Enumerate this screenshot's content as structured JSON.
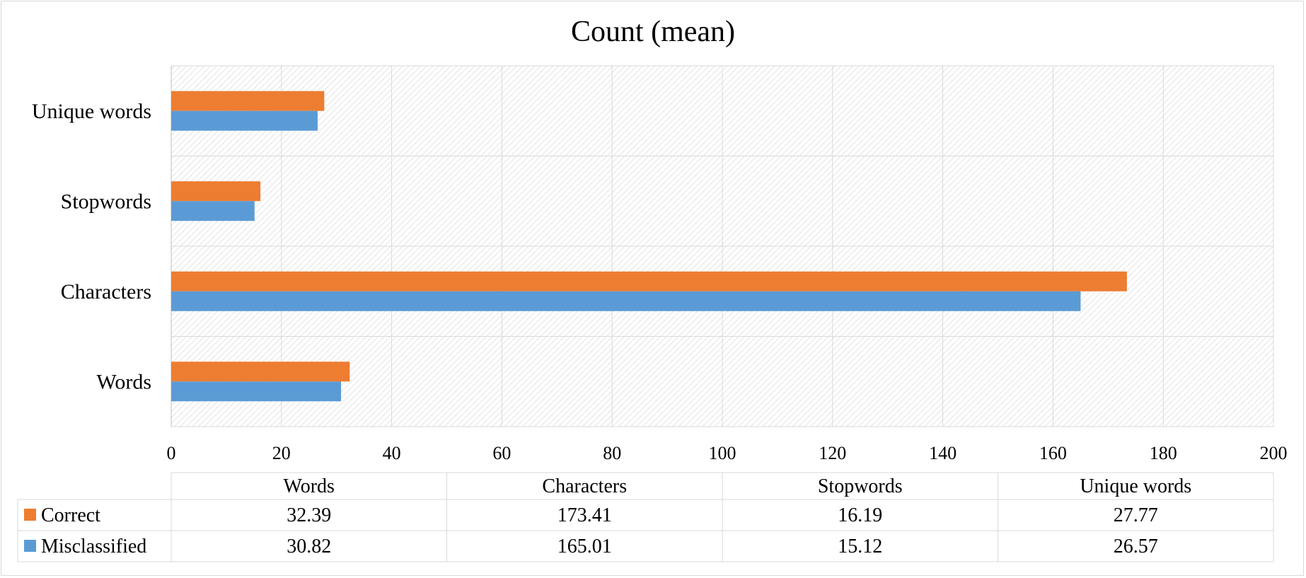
{
  "chart_data": {
    "type": "bar",
    "orientation": "horizontal",
    "title": "Count (mean)",
    "categories": [
      "Words",
      "Characters",
      "Stopwords",
      "Unique words"
    ],
    "series": [
      {
        "name": "Correct",
        "values": [
          32.39,
          173.41,
          16.19,
          27.77
        ],
        "labels": [
          "32.39",
          "173.41",
          "16.19",
          "27.77"
        ],
        "color": "#ED7D31"
      },
      {
        "name": "Misclassified",
        "values": [
          30.82,
          165.01,
          15.12,
          26.57
        ],
        "labels": [
          "30.82",
          "165.01",
          "15.12",
          "26.57"
        ],
        "color": "#5B9BD5"
      }
    ],
    "xlim": [
      0,
      200
    ],
    "xticks": [
      "0",
      "20",
      "40",
      "60",
      "80",
      "100",
      "120",
      "140",
      "160",
      "180",
      "200"
    ],
    "grid": true,
    "data_table": true
  }
}
